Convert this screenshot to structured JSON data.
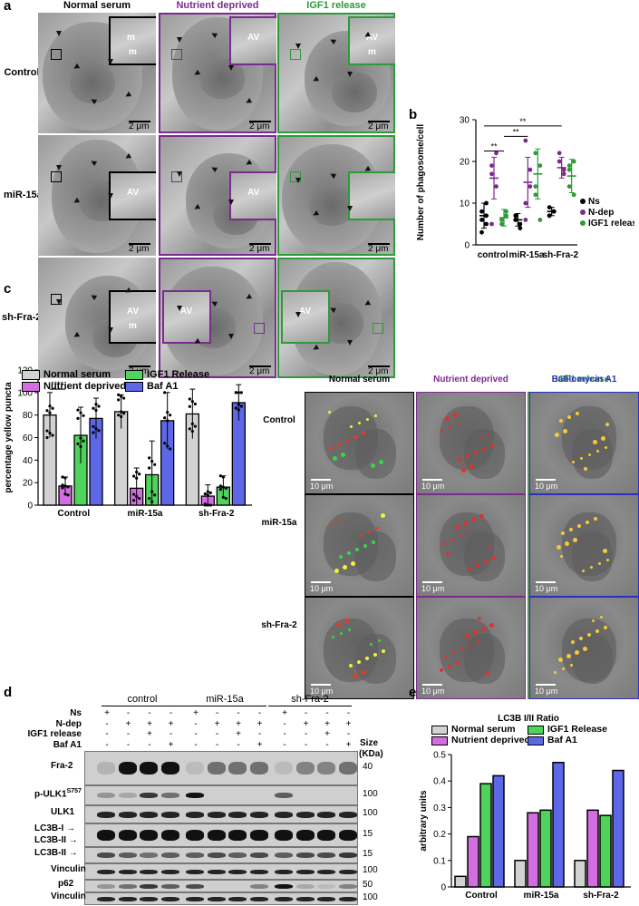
{
  "panel_a": {
    "label": "a",
    "columns": [
      {
        "title": "Normal serum",
        "color": "#000000"
      },
      {
        "title": "Nutrient deprived",
        "color": "#7b2a8e"
      },
      {
        "title": "IGF1 release",
        "color": "#2e9a3a"
      }
    ],
    "rows": [
      "Control",
      "miR-15a",
      "sh-Fra-2"
    ],
    "insets": [
      [
        "m",
        "AV",
        "AV"
      ],
      [
        "AV",
        "AV",
        ""
      ],
      [
        "AV",
        "AV",
        "AV"
      ]
    ],
    "inset_extra": [
      [
        "m",
        "",
        "m"
      ],
      [
        "",
        "",
        ""
      ],
      [
        "m",
        "",
        ""
      ]
    ],
    "scale": "2 μm"
  },
  "panel_b": {
    "label": "b",
    "chart_data": {
      "type": "scatter",
      "ylabel": "Number of phagosome/cell",
      "ylim": [
        0,
        30
      ],
      "yticks": [
        "0",
        "10",
        "20",
        "30"
      ],
      "categories": [
        "control",
        "miR-15a",
        "sh-Fra-2"
      ],
      "series": [
        {
          "name": "Ns",
          "color": "#000000",
          "points": [
            [
              8,
              5,
              6,
              10,
              3,
              7
            ],
            [
              6,
              5,
              7,
              4,
              7
            ],
            [
              7,
              8,
              9,
              8,
              7
            ]
          ],
          "mean": [
            7,
            6,
            8
          ],
          "sd": [
            3,
            1.5,
            1
          ]
        },
        {
          "name": "N-dep",
          "color": "#7b2a8e",
          "points": [
            [
              19,
              22,
              17,
              14,
              5
            ],
            [
              10,
              18,
              25,
              14,
              6
            ],
            [
              22,
              17,
              20,
              18
            ]
          ],
          "mean": [
            16,
            15,
            18.5
          ],
          "sd": [
            5,
            6,
            2.5
          ]
        },
        {
          "name": "IGF1 release",
          "color": "#2e9a3a",
          "points": [
            [
              6,
              7,
              5,
              8
            ],
            [
              22,
              19,
              12,
              6,
              14
            ],
            [
              19,
              20,
              14,
              12,
              18
            ]
          ],
          "mean": [
            6.5,
            17,
            16.5
          ],
          "sd": [
            2,
            6,
            4
          ]
        }
      ],
      "significance": [
        "**",
        "**",
        "**"
      ]
    }
  },
  "panel_c": {
    "label": "c",
    "chart_data": {
      "type": "bar",
      "ylabel": "percentage yellow puncta",
      "ylim": [
        0,
        120
      ],
      "yticks": [
        "0",
        "20",
        "40",
        "60",
        "80",
        "100",
        "120"
      ],
      "categories": [
        "Control",
        "miR-15a",
        "sh-Fra-2"
      ],
      "series": [
        {
          "name": "Normal serum",
          "color": "#d2d2d2",
          "values": [
            80,
            83,
            81
          ],
          "err": [
            20,
            15,
            22
          ]
        },
        {
          "name": "Nutrient deprived",
          "color": "#d36ee0",
          "values": [
            17,
            15,
            8
          ],
          "err": [
            8,
            18,
            10
          ]
        },
        {
          "name": "IGF1 Release",
          "color": "#4fd35c",
          "values": [
            62,
            27,
            16
          ],
          "err": [
            25,
            30,
            10
          ]
        },
        {
          "name": "Baf A1",
          "color": "#5e67e8",
          "values": [
            77,
            75,
            91
          ],
          "err": [
            18,
            25,
            16
          ]
        }
      ],
      "significance": "****"
    },
    "fluor": {
      "columns": [
        {
          "title": "Normal serum",
          "color": "#000000"
        },
        {
          "title": "Nutrient deprived",
          "color": "#7b2a8e"
        },
        {
          "title": "IGF1 release",
          "color": "#2e9a3a"
        },
        {
          "title": "Bafilomycin A1",
          "color": "#2b2fc2"
        }
      ],
      "rows": [
        "Control",
        "miR-15a",
        "sh-Fra-2"
      ],
      "scale": "10 μm"
    }
  },
  "panel_d": {
    "label": "d",
    "groups": [
      "control",
      "miR-15a",
      "sh-Fra-2"
    ],
    "conditions": [
      {
        "name": "Ns",
        "signs": [
          "+",
          "-",
          "-",
          "-",
          "+",
          "-",
          "-",
          "-",
          "+",
          "-",
          "-",
          "-"
        ]
      },
      {
        "name": "N-dep",
        "signs": [
          "-",
          "+",
          "+",
          "+",
          "-",
          "+",
          "+",
          "+",
          "-",
          "+",
          "+",
          "+"
        ]
      },
      {
        "name": "IGF1 release",
        "signs": [
          "-",
          "-",
          "+",
          "-",
          "-",
          "-",
          "+",
          "-",
          "-",
          "-",
          "+",
          "-"
        ]
      },
      {
        "name": "Baf A1",
        "signs": [
          "-",
          "-",
          "-",
          "+",
          "-",
          "-",
          "-",
          "+",
          "-",
          "-",
          "-",
          "+"
        ]
      }
    ],
    "size_header": "Size",
    "size_unit": "(KDa)",
    "blots": [
      {
        "name": "Fra-2",
        "size": "40"
      },
      {
        "name": "p-ULK1",
        "sup": "S757",
        "size": "100"
      },
      {
        "name": "ULK1",
        "size": "100"
      },
      {
        "name": "LC3B-I →",
        "name2": "LC3B-II →",
        "size": "15"
      },
      {
        "name": "LC3B-II →",
        "size": "15"
      },
      {
        "name": "Vinculin",
        "size": "100"
      },
      {
        "name": "p62",
        "size": "50"
      },
      {
        "name": "Vinculin",
        "size": "100"
      }
    ]
  },
  "panel_e": {
    "label": "e",
    "chart_data": {
      "type": "bar",
      "title": "LC3B I/II Ratio",
      "ylabel": "arbitrary units",
      "ylim": [
        0,
        0.5
      ],
      "yticks": [
        "0",
        "0.1",
        "0.2",
        "0.3",
        "0.4",
        "0.5"
      ],
      "categories": [
        "Control",
        "miR-15a",
        "sh-Fra-2"
      ],
      "series": [
        {
          "name": "Normal serum",
          "color": "#d2d2d2",
          "values": [
            0.04,
            0.1,
            0.1
          ]
        },
        {
          "name": "Nutrient deprived",
          "color": "#d36ee0",
          "values": [
            0.19,
            0.28,
            0.29
          ]
        },
        {
          "name": "IGF1 Release",
          "color": "#4fd35c",
          "values": [
            0.39,
            0.29,
            0.27
          ]
        },
        {
          "name": "Baf A1",
          "color": "#5e67e8",
          "values": [
            0.42,
            0.47,
            0.44
          ]
        }
      ]
    }
  }
}
